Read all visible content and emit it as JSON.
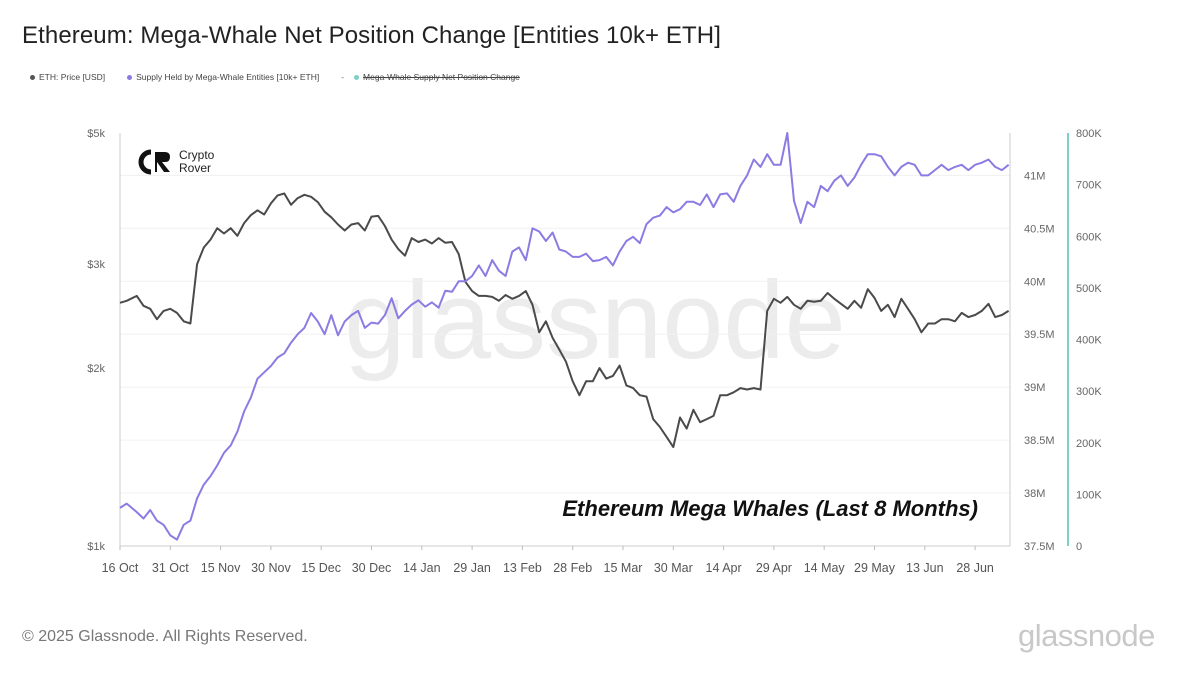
{
  "title": "Ethereum: Mega-Whale Net Position Change [Entities 10k+ ETH]",
  "legend": [
    {
      "label": "ETH: Price [USD]",
      "color": "#555555",
      "struck": false
    },
    {
      "label": "Supply Held by Mega-Whale Entities [10k+ ETH]",
      "color": "#8a7ae0",
      "struck": false
    },
    {
      "label": "Mega-Whale Supply Net Position Change",
      "color": "#7ecfc6",
      "struck": true
    }
  ],
  "legend_separator": "-",
  "brand": {
    "line1": "Crypto",
    "line2": "Rover"
  },
  "watermark": "glassnode",
  "annotation": "Ethereum Mega Whales (Last 8 Months)",
  "footer": {
    "copyright": "© 2025 Glassnode. All Rights Reserved.",
    "logo": "glassnode"
  },
  "chart_data": {
    "type": "line",
    "x_ticks": [
      "16 Oct",
      "31 Oct",
      "15 Nov",
      "30 Nov",
      "15 Dec",
      "30 Dec",
      "14 Jan",
      "29 Jan",
      "13 Feb",
      "28 Feb",
      "15 Mar",
      "30 Mar",
      "14 Apr",
      "29 Apr",
      "14 May",
      "29 May",
      "13 Jun",
      "28 Jun"
    ],
    "y_left": {
      "label": "ETH: Price [USD]",
      "scale": "log",
      "ticks": [
        "$1k",
        "$2k",
        "$3k",
        "$5k"
      ],
      "tick_values": [
        1000,
        2000,
        3000,
        5000
      ],
      "range": [
        1000,
        5000
      ]
    },
    "y_mid": {
      "label": "Supply Held by Mega-Whale Entities [10k+ ETH]",
      "ticks": [
        "37.5M",
        "38M",
        "38.5M",
        "39M",
        "39.5M",
        "40M",
        "40.5M",
        "41M"
      ],
      "tick_values": [
        37500000,
        38000000,
        38500000,
        39000000,
        39500000,
        40000000,
        40500000,
        41000000
      ],
      "range": [
        37500000,
        41400000
      ]
    },
    "y_right": {
      "label": "Mega-Whale Supply Net Position Change",
      "ticks": [
        "0",
        "100K",
        "200K",
        "300K",
        "400K",
        "500K",
        "600K",
        "700K",
        "800K"
      ],
      "tick_values": [
        0,
        100000,
        200000,
        300000,
        400000,
        500000,
        600000,
        700000,
        800000
      ],
      "range": [
        0,
        800000
      ]
    },
    "series": [
      {
        "name": "ETH: Price [USD]",
        "color": "#4a4a4a",
        "x": [
          0,
          2,
          5,
          7,
          9,
          11,
          13,
          15,
          17,
          19,
          21,
          23,
          25,
          27,
          29,
          31,
          33,
          35,
          37,
          39,
          41,
          43,
          45,
          47,
          49,
          51,
          53,
          55,
          57,
          59,
          61,
          63,
          65,
          67,
          69,
          71,
          73,
          75,
          77,
          79,
          81,
          83,
          85,
          87,
          89,
          91,
          93,
          95,
          97,
          99,
          101,
          103,
          105,
          107,
          109,
          111,
          113,
          115,
          117,
          119,
          121,
          123,
          125,
          127,
          129,
          131,
          133,
          135,
          137,
          139,
          141,
          143,
          145,
          147,
          149,
          151,
          153,
          155,
          157,
          159,
          161,
          163,
          165,
          167,
          169,
          171,
          173,
          175,
          177,
          179,
          181,
          183,
          185,
          187,
          189,
          191,
          193,
          195,
          197,
          199,
          201,
          203,
          205,
          207,
          209,
          211,
          213,
          215,
          217,
          219,
          221,
          223,
          225,
          227,
          229,
          231,
          233,
          235,
          237,
          239,
          241,
          243,
          245,
          247,
          249,
          251,
          253,
          255,
          257,
          259,
          261,
          263,
          265
        ],
        "y": [
          2580,
          2600,
          2650,
          2550,
          2520,
          2420,
          2500,
          2520,
          2480,
          2400,
          2380,
          3000,
          3200,
          3300,
          3450,
          3380,
          3450,
          3350,
          3520,
          3630,
          3700,
          3640,
          3800,
          3920,
          3950,
          3780,
          3880,
          3930,
          3900,
          3820,
          3680,
          3600,
          3500,
          3420,
          3500,
          3520,
          3420,
          3610,
          3620,
          3480,
          3300,
          3180,
          3100,
          3320,
          3270,
          3300,
          3250,
          3320,
          3260,
          3270,
          3120,
          2800,
          2700,
          2650,
          2650,
          2640,
          2600,
          2660,
          2620,
          2650,
          2700,
          2560,
          2300,
          2400,
          2250,
          2150,
          2050,
          1900,
          1800,
          1900,
          1900,
          2000,
          1920,
          1940,
          2020,
          1870,
          1850,
          1800,
          1790,
          1640,
          1590,
          1530,
          1470,
          1650,
          1580,
          1700,
          1620,
          1640,
          1660,
          1800,
          1800,
          1820,
          1850,
          1840,
          1850,
          1840,
          2500,
          2620,
          2580,
          2640,
          2560,
          2520,
          2600,
          2590,
          2600,
          2680,
          2620,
          2570,
          2520,
          2600,
          2530,
          2720,
          2630,
          2500,
          2560,
          2440,
          2620,
          2520,
          2420,
          2300,
          2380,
          2380,
          2420,
          2420,
          2400,
          2480,
          2440,
          2460,
          2500,
          2570,
          2440,
          2460,
          2500
        ]
      },
      {
        "name": "Supply Held by Mega-Whale Entities [10k+ ETH]",
        "color": "#8b7be3",
        "x": [
          0,
          2,
          5,
          7,
          9,
          11,
          13,
          15,
          17,
          19,
          21,
          23,
          25,
          27,
          29,
          31,
          33,
          35,
          37,
          39,
          41,
          43,
          45,
          47,
          49,
          51,
          53,
          55,
          57,
          59,
          61,
          63,
          65,
          67,
          69,
          71,
          73,
          75,
          77,
          79,
          81,
          83,
          85,
          87,
          89,
          91,
          93,
          95,
          97,
          99,
          101,
          103,
          105,
          107,
          109,
          111,
          113,
          115,
          117,
          119,
          121,
          123,
          125,
          127,
          129,
          131,
          133,
          135,
          137,
          139,
          141,
          143,
          145,
          147,
          149,
          151,
          153,
          155,
          157,
          159,
          161,
          163,
          165,
          167,
          169,
          171,
          173,
          175,
          177,
          179,
          181,
          183,
          185,
          187,
          189,
          191,
          193,
          195,
          197,
          199,
          201,
          203,
          205,
          207,
          209,
          211,
          213,
          215,
          217,
          219,
          221,
          223,
          225,
          227,
          229,
          231,
          233,
          235,
          237,
          239,
          241,
          243,
          245,
          247,
          249,
          251,
          253,
          255,
          257,
          259,
          261,
          263,
          265
        ],
        "y": [
          37860,
          37900,
          37820,
          37760,
          37840,
          37740,
          37700,
          37600,
          37560,
          37700,
          37740,
          37950,
          38080,
          38160,
          38260,
          38380,
          38450,
          38580,
          38770,
          38900,
          39080,
          39140,
          39200,
          39280,
          39320,
          39420,
          39500,
          39560,
          39700,
          39620,
          39500,
          39680,
          39490,
          39620,
          39680,
          39720,
          39560,
          39610,
          39600,
          39680,
          39840,
          39650,
          39720,
          39780,
          39820,
          39760,
          39800,
          39750,
          39910,
          39900,
          40000,
          40000,
          40050,
          40150,
          40050,
          40200,
          40100,
          40050,
          40280,
          40320,
          40200,
          40500,
          40470,
          40380,
          40460,
          40300,
          40280,
          40230,
          40230,
          40260,
          40190,
          40200,
          40230,
          40150,
          40280,
          40380,
          40420,
          40360,
          40540,
          40600,
          40620,
          40700,
          40650,
          40680,
          40750,
          40750,
          40720,
          40820,
          40700,
          40820,
          40830,
          40750,
          40900,
          41000,
          41150,
          41080,
          41200,
          41100,
          41100,
          41400,
          40760,
          40550,
          40750,
          40700,
          40900,
          40850,
          40950,
          41000,
          40900,
          40980,
          41100,
          41200,
          41200,
          41180,
          41080,
          41000,
          41080,
          41120,
          41100,
          41000,
          41000,
          41050,
          41100,
          41050,
          41080,
          41100,
          41050,
          41100,
          41120,
          41150,
          41080,
          41050,
          41100
        ]
      }
    ],
    "grid": true,
    "legend_position": "top-left"
  }
}
